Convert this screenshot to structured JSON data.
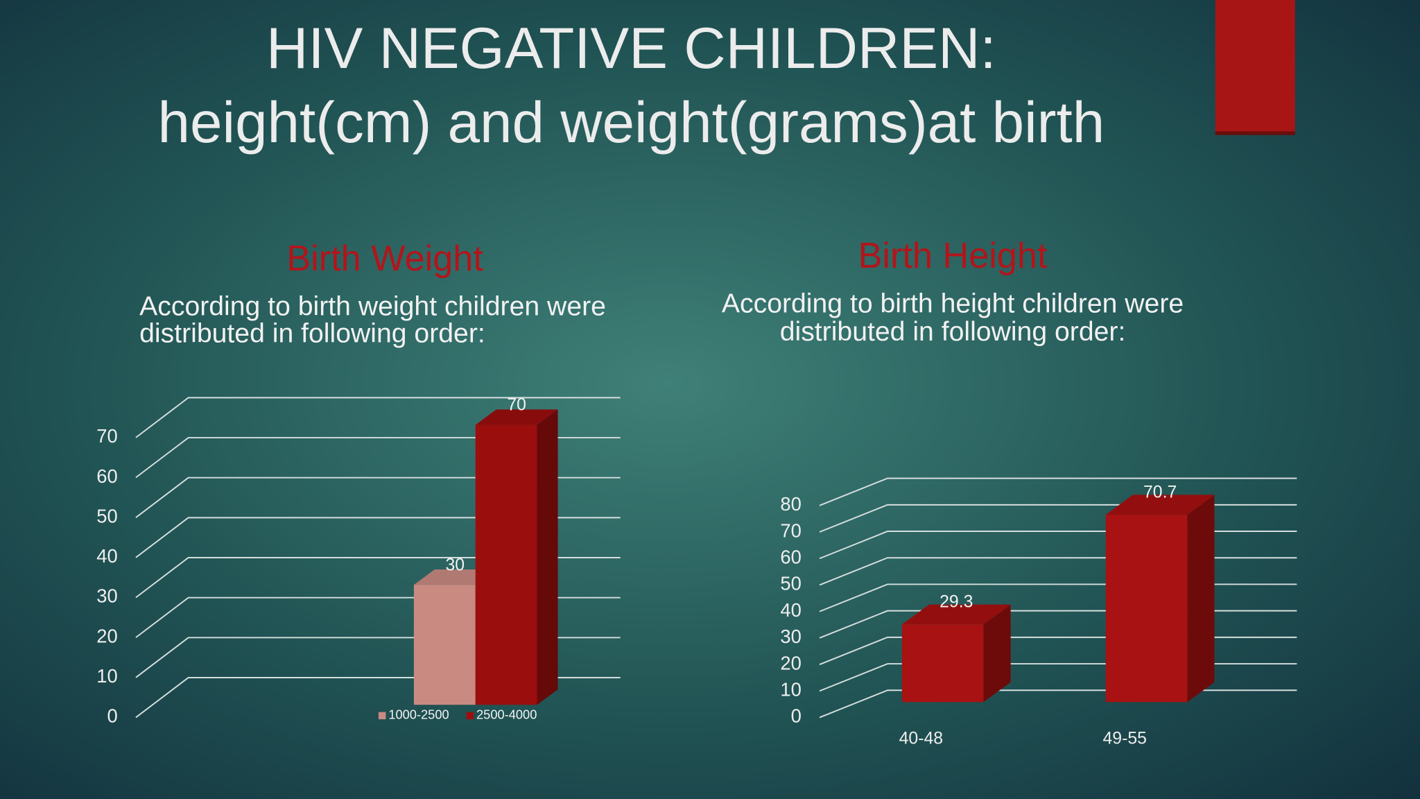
{
  "title": [
    "HIV NEGATIVE CHILDREN:",
    "height(cm) and weight(grams)at birth"
  ],
  "chart_data": [
    {
      "type": "bar3d",
      "title": "Birth Weight",
      "subtitle": [
        "According to birth weight children were",
        "distributed in following order:"
      ],
      "categories": [
        null
      ],
      "series": [
        {
          "name": "1000-2500",
          "color": "#c98a82",
          "values": [
            30
          ]
        },
        {
          "name": "2500-4000",
          "color": "#9b0e0e",
          "values": [
            70
          ]
        }
      ],
      "ylim": [
        0,
        70
      ],
      "yticks": [
        0,
        10,
        20,
        30,
        40,
        50,
        60,
        70
      ],
      "grid": true,
      "legend": "bottom"
    },
    {
      "type": "bar3d",
      "title": "Birth Height",
      "subtitle": [
        "According to birth height children were",
        "distributed in following order:"
      ],
      "categories": [
        "40-48",
        "49-55"
      ],
      "values": [
        29.3,
        70.7
      ],
      "color": "#a81212",
      "ylim": [
        0,
        80
      ],
      "yticks": [
        0,
        10,
        20,
        30,
        40,
        50,
        60,
        70,
        80
      ],
      "grid": true
    }
  ]
}
